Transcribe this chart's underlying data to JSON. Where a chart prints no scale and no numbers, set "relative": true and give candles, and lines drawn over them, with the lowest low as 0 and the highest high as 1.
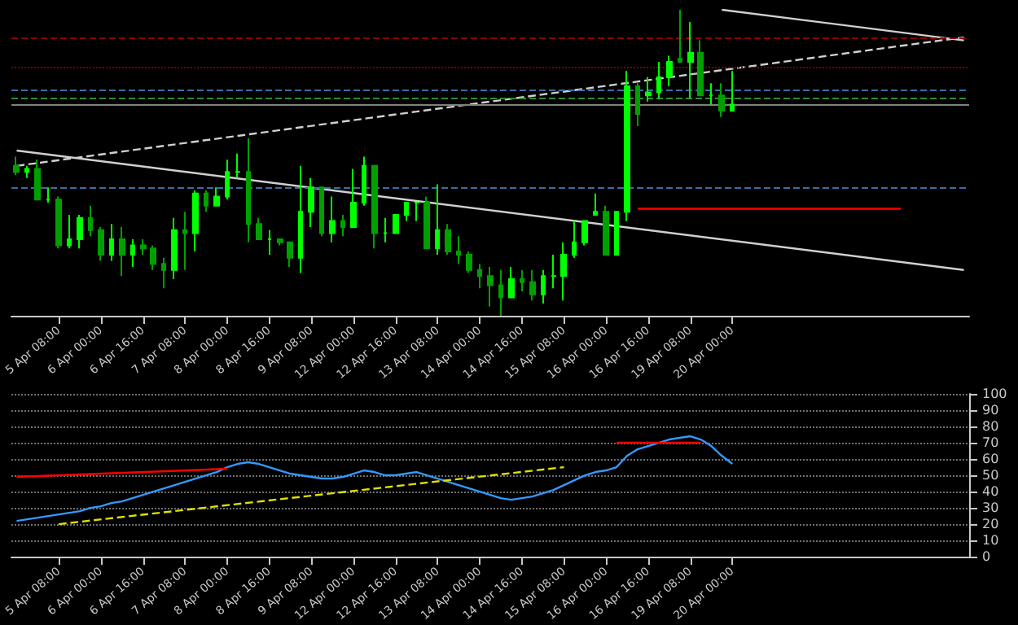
{
  "chart_data": [
    {
      "type": "candlestick",
      "relative": true,
      "categories": [
        null,
        null,
        null,
        null,
        "5 Apr 08:00",
        null,
        null,
        null,
        "6 Apr 00:00",
        null,
        null,
        null,
        "6 Apr 16:00",
        null,
        null,
        null,
        "7 Apr 08:00",
        null,
        null,
        null,
        "8 Apr 00:00",
        null,
        null,
        null,
        "8 Apr 16:00",
        null,
        null,
        null,
        "9 Apr 08:00",
        null,
        null,
        null,
        "12 Apr 00:00",
        null,
        null,
        null,
        "12 Apr 16:00",
        null,
        null,
        null,
        "13 Apr 08:00",
        null,
        null,
        null,
        "14 Apr 00:00",
        null,
        null,
        null,
        "14 Apr 16:00",
        null,
        null,
        null,
        "15 Apr 08:00",
        null,
        null,
        null,
        "16 Apr 00:00",
        null,
        null,
        null,
        "16 Apr 16:00",
        null,
        null,
        null,
        "19 Apr 08:00",
        null,
        null,
        null,
        "20 Apr 00:00",
        null,
        null,
        null,
        null,
        null,
        null,
        null,
        null,
        null,
        null,
        null,
        null,
        null,
        null,
        null,
        null,
        null,
        null,
        null,
        null,
        null,
        null
      ],
      "series": [
        {
          "colors": [
            "#00a000",
            "#00ff00",
            "#00a000",
            "#00ff00",
            "#00a000",
            "#00ff00",
            "#00ff00",
            "#00a000",
            "#00a000",
            "#00ff00",
            "#00a000",
            "#00ff00",
            "#00a000",
            "#00a000",
            "#00a000",
            "#00ff00",
            "#00a000",
            "#00ff00",
            "#00a000",
            "#00ff00",
            "#00ff00",
            "#00ff00",
            "#00a000",
            "#00a000",
            "#00ff00",
            "#00a000",
            "#00a000",
            "#00ff00",
            "#00ff00",
            "#00a000",
            "#00ff00",
            "#00a000",
            "#00ff00",
            "#00ff00",
            "#00a000",
            "#00ff00",
            "#00ff00",
            "#00ff00",
            "#00ff00",
            "#00a000",
            "#00ff00",
            "#00a000",
            "#00a000",
            "#00a000",
            "#00a000",
            "#00a000",
            "#00a000",
            "#00ff00",
            "#00a000",
            "#00a000",
            "#00ff00",
            "#00ff00",
            "#00ff00",
            "#00ff00",
            "#00ff00",
            "#00ff00",
            "#00a000",
            "#00ff00",
            "#00ff00",
            "#00a000",
            "#00ff00",
            "#00ff00",
            "#00ff00",
            "#00a000",
            "#00ff00",
            "#00a000",
            "#00ff00",
            "#00a000",
            "#00ff00",
            null,
            null,
            null,
            null,
            null,
            null,
            null,
            null,
            null,
            null,
            null,
            null,
            null,
            null,
            null,
            null,
            null,
            null,
            null,
            null,
            null,
            null
          ],
          "ohlc": [
            [
              0.49,
              0.52,
              0.46,
              0.47
            ],
            [
              0.47,
              0.49,
              0.45,
              0.48
            ],
            [
              0.48,
              0.51,
              0.38,
              0.38
            ],
            [
              0.38,
              0.42,
              0.37,
              0.38
            ],
            [
              0.38,
              0.39,
              0.22,
              0.23
            ],
            [
              0.23,
              0.33,
              0.22,
              0.25
            ],
            [
              0.25,
              0.33,
              0.22,
              0.32
            ],
            [
              0.32,
              0.36,
              0.26,
              0.28
            ],
            [
              0.28,
              0.29,
              0.18,
              0.2
            ],
            [
              0.2,
              0.3,
              0.18,
              0.25
            ],
            [
              0.25,
              0.29,
              0.13,
              0.2
            ],
            [
              0.2,
              0.25,
              0.16,
              0.23
            ],
            [
              0.23,
              0.25,
              0.2,
              0.22
            ],
            [
              0.22,
              0.23,
              0.15,
              0.17
            ],
            [
              0.17,
              0.19,
              0.09,
              0.15
            ],
            [
              0.15,
              0.32,
              0.12,
              0.28
            ],
            [
              0.28,
              0.34,
              0.15,
              0.27
            ],
            [
              0.27,
              0.41,
              0.21,
              0.4
            ],
            [
              0.4,
              0.41,
              0.34,
              0.36
            ],
            [
              0.36,
              0.42,
              0.36,
              0.39
            ],
            [
              0.39,
              0.51,
              0.38,
              0.47
            ],
            [
              0.47,
              0.53,
              0.45,
              0.47
            ],
            [
              0.47,
              0.58,
              0.24,
              0.3
            ],
            [
              0.3,
              0.32,
              0.25,
              0.25
            ],
            [
              0.25,
              0.28,
              0.2,
              0.25
            ],
            [
              0.25,
              0.25,
              0.23,
              0.24
            ],
            [
              0.24,
              0.24,
              0.16,
              0.19
            ],
            [
              0.19,
              0.49,
              0.14,
              0.34
            ],
            [
              0.34,
              0.45,
              0.29,
              0.42
            ],
            [
              0.42,
              0.42,
              0.26,
              0.27
            ],
            [
              0.27,
              0.39,
              0.24,
              0.31
            ],
            [
              0.31,
              0.33,
              0.26,
              0.29
            ],
            [
              0.29,
              0.48,
              0.29,
              0.37
            ],
            [
              0.37,
              0.52,
              0.36,
              0.49
            ],
            [
              0.49,
              0.49,
              0.22,
              0.27
            ],
            [
              0.27,
              0.32,
              0.24,
              0.27
            ],
            [
              0.27,
              0.33,
              0.27,
              0.33
            ],
            [
              0.33,
              0.37,
              0.31,
              0.37
            ],
            [
              0.37,
              0.37,
              0.31,
              0.37
            ],
            [
              0.37,
              0.39,
              0.22,
              0.22
            ],
            [
              0.22,
              0.43,
              0.2,
              0.28
            ],
            [
              0.28,
              0.3,
              0.2,
              0.21
            ],
            [
              0.21,
              0.26,
              0.17,
              0.2
            ],
            [
              0.2,
              0.21,
              0.14,
              0.15
            ],
            [
              0.15,
              0.17,
              0.09,
              0.13
            ],
            [
              0.13,
              0.16,
              0.03,
              0.1
            ],
            [
              0.1,
              0.15,
              0,
              0.06
            ],
            [
              0.06,
              0.16,
              0.06,
              0.12
            ],
            [
              0.12,
              0.15,
              0.08,
              0.11
            ],
            [
              0.11,
              0.15,
              0.05,
              0.07
            ],
            [
              0.07,
              0.15,
              0.04,
              0.13
            ],
            [
              0.13,
              0.2,
              0.09,
              0.13
            ],
            [
              0.13,
              0.24,
              0.05,
              0.2
            ],
            [
              0.2,
              0.31,
              0.19,
              0.24
            ],
            [
              0.24,
              0.31,
              0.23,
              0.31
            ],
            [
              0.33,
              0.4,
              0.33,
              0.34
            ],
            [
              0.34,
              0.36,
              0.2,
              0.2
            ],
            [
              0.2,
              0.34,
              0.2,
              0.34
            ],
            [
              0.34,
              0.8,
              0.31,
              0.75
            ],
            [
              0.75,
              0.76,
              0.62,
              0.66
            ],
            [
              0.72,
              0.78,
              0.7,
              0.73
            ],
            [
              0.73,
              0.83,
              0.71,
              0.78
            ],
            [
              0.78,
              0.85,
              0.75,
              0.83
            ],
            [
              0.84,
              1,
              0.83,
              0.83
            ],
            [
              0.83,
              0.96,
              0.71,
              0.86
            ],
            [
              0.86,
              0.9,
              0.72,
              0.72
            ],
            [
              0.72,
              0.76,
              0.69,
              0.72
            ],
            [
              0.72,
              0.76,
              0.65,
              0.67
            ],
            [
              0.67,
              0.8,
              0.67,
              0.69
            ],
            null,
            null,
            null,
            null,
            null,
            null,
            null,
            null,
            null,
            null,
            null,
            null,
            null,
            null,
            null,
            null,
            null,
            null,
            null,
            null,
            null,
            null
          ]
        },
        {
          "type": "line",
          "color": "#d0d0d0",
          "values": [
            null,
            null,
            null,
            null,
            null,
            null,
            null,
            null,
            null,
            null,
            null,
            null,
            null,
            null,
            null,
            null,
            null,
            null,
            null,
            null,
            null,
            null,
            null,
            null,
            null,
            null,
            null,
            null,
            null,
            null,
            null,
            null,
            null,
            null,
            null,
            null,
            null,
            null,
            null,
            null,
            null,
            null,
            null,
            null,
            null,
            null,
            null,
            null,
            null,
            null,
            null,
            null,
            null,
            null,
            null,
            null,
            null,
            null,
            null,
            null,
            null,
            null,
            null,
            null,
            null,
            null,
            null,
            1,
            null,
            null,
            null,
            null,
            null,
            null,
            null,
            null,
            null,
            null,
            null,
            null,
            null,
            null,
            null,
            null,
            null,
            null,
            null,
            null,
            null,
            null,
            0.9
          ]
        },
        {
          "type": "line",
          "color": "#d0d0d0",
          "line_style": "dashed",
          "values": [
            0.49,
            null,
            null,
            null,
            null,
            null,
            null,
            null,
            null,
            null,
            null,
            null,
            null,
            null,
            null,
            null,
            null,
            null,
            null,
            null,
            null,
            null,
            null,
            null,
            null,
            null,
            null,
            null,
            null,
            null,
            null,
            null,
            null,
            null,
            null,
            null,
            null,
            null,
            null,
            null,
            null,
            null,
            null,
            null,
            null,
            null,
            null,
            null,
            null,
            null,
            null,
            null,
            null,
            null,
            null,
            null,
            null,
            null,
            null,
            null,
            null,
            null,
            null,
            null,
            null,
            null,
            null,
            null,
            null,
            null,
            null,
            null,
            null,
            null,
            null,
            null,
            null,
            null,
            null,
            null,
            null,
            null,
            null,
            null,
            null,
            null,
            null,
            null,
            null,
            null,
            0.91
          ]
        },
        {
          "type": "line",
          "color": "#d0d0d0",
          "values": [
            0.54,
            null,
            null,
            null,
            null,
            null,
            null,
            null,
            null,
            null,
            null,
            null,
            null,
            null,
            null,
            null,
            null,
            null,
            null,
            null,
            null,
            null,
            null,
            null,
            null,
            null,
            null,
            null,
            null,
            null,
            null,
            null,
            null,
            null,
            null,
            null,
            null,
            null,
            null,
            null,
            null,
            null,
            null,
            null,
            null,
            null,
            null,
            null,
            null,
            null,
            null,
            null,
            null,
            null,
            null,
            null,
            null,
            null,
            null,
            null,
            null,
            null,
            null,
            null,
            null,
            null,
            null,
            null,
            null,
            null,
            null,
            null,
            null,
            null,
            null,
            null,
            null,
            null,
            null,
            null,
            null,
            null,
            null,
            null,
            null,
            null,
            null,
            null,
            null,
            null,
            0.15
          ]
        },
        {
          "type": "line",
          "color": "#ff0000",
          "values": [
            null,
            null,
            null,
            null,
            null,
            null,
            null,
            null,
            null,
            null,
            null,
            null,
            null,
            null,
            null,
            null,
            null,
            null,
            null,
            null,
            null,
            null,
            null,
            null,
            null,
            null,
            null,
            null,
            null,
            null,
            null,
            null,
            null,
            null,
            null,
            null,
            null,
            null,
            null,
            null,
            null,
            null,
            null,
            null,
            null,
            null,
            null,
            null,
            null,
            null,
            null,
            null,
            null,
            null,
            null,
            null,
            null,
            null,
            null,
            0.35,
            null,
            null,
            null,
            null,
            null,
            null,
            null,
            null,
            null,
            null,
            null,
            null,
            null,
            null,
            null,
            null,
            null,
            null,
            null,
            null,
            null,
            null,
            null,
            null,
            0.35,
            null,
            null,
            null,
            null,
            null,
            null
          ]
        }
      ],
      "ref_lines": [
        {
          "axis": "y",
          "value": 0.91,
          "color": "#8b0000",
          "line_style": "dashed"
        },
        {
          "axis": "y",
          "value": 0.81,
          "color": "#800000",
          "line_style": "dotted"
        },
        {
          "axis": "y",
          "value": 0.74,
          "color": "#3a6ea5",
          "line_style": "dashed"
        },
        {
          "axis": "y",
          "value": 0.71,
          "color": "#2e8b2e",
          "line_style": "dashed"
        },
        {
          "axis": "y",
          "value": 0.69,
          "color": "#808080",
          "line_style": "solid"
        },
        {
          "axis": "y",
          "value": 0.42,
          "color": "#3a6ea5",
          "line_style": "dashed"
        }
      ]
    },
    {
      "type": "line",
      "ylim": [
        0,
        100
      ],
      "yticks": [
        0,
        10,
        20,
        30,
        40,
        50,
        60,
        70,
        80,
        90,
        100
      ],
      "grid": "y",
      "categories": [
        null,
        null,
        null,
        null,
        "5 Apr 08:00",
        null,
        null,
        null,
        "6 Apr 00:00",
        null,
        null,
        null,
        "6 Apr 16:00",
        null,
        null,
        null,
        "7 Apr 08:00",
        null,
        null,
        null,
        "8 Apr 00:00",
        null,
        null,
        null,
        "8 Apr 16:00",
        null,
        null,
        null,
        "9 Apr 08:00",
        null,
        null,
        null,
        "12 Apr 00:00",
        null,
        null,
        null,
        "12 Apr 16:00",
        null,
        null,
        null,
        "13 Apr 08:00",
        null,
        null,
        null,
        "14 Apr 00:00",
        null,
        null,
        null,
        "14 Apr 16:00",
        null,
        null,
        null,
        "15 Apr 08:00",
        null,
        null,
        null,
        "16 Apr 00:00",
        null,
        null,
        null,
        "16 Apr 16:00",
        null,
        null,
        null,
        "19 Apr 08:00",
        null,
        null,
        null,
        "20 Apr 00:00",
        null,
        null,
        null,
        null,
        null,
        null,
        null,
        null,
        null,
        null,
        null,
        null,
        null,
        null,
        null,
        null,
        null,
        null,
        null,
        null,
        null,
        null
      ],
      "series": [
        {
          "color": "#3399ff",
          "values": [
            22,
            23,
            24,
            25,
            26,
            27,
            28,
            30,
            31,
            33,
            34,
            36,
            38,
            40,
            42,
            44,
            46,
            48,
            50,
            52,
            55,
            57,
            58,
            57,
            55,
            53,
            51,
            50,
            49,
            48,
            48,
            49,
            51,
            53,
            52,
            50,
            50,
            51,
            52,
            50,
            48,
            46,
            44,
            42,
            40,
            38,
            36,
            35,
            36,
            37,
            39,
            41,
            44,
            47,
            50,
            52,
            53,
            55,
            62,
            66,
            68,
            70,
            72,
            73,
            74,
            72,
            68,
            62,
            57,
            null,
            null,
            null,
            null,
            null,
            null,
            null,
            null,
            null,
            null,
            null,
            null,
            null,
            null,
            null,
            null,
            null,
            null,
            null,
            null,
            null,
            null
          ]
        },
        {
          "color": "#ff0000",
          "values": [
            49,
            null,
            null,
            null,
            null,
            null,
            null,
            null,
            null,
            null,
            null,
            null,
            null,
            null,
            null,
            null,
            null,
            null,
            null,
            null,
            54,
            null,
            null,
            null,
            null,
            null,
            null,
            null,
            null,
            null,
            null,
            null,
            null,
            null,
            null,
            null,
            null,
            null,
            null,
            null,
            null,
            null,
            null,
            null,
            null,
            null,
            null,
            null,
            null,
            null,
            null,
            null,
            null,
            null,
            null,
            null,
            null,
            null,
            null,
            null,
            null,
            null,
            null,
            null,
            null,
            null,
            null,
            null,
            null,
            null,
            null,
            null,
            null,
            null,
            null,
            null,
            null,
            null,
            null,
            null,
            null,
            null,
            null,
            null,
            null,
            null,
            null,
            null,
            null,
            null,
            null
          ]
        },
        {
          "color": "#ff0000",
          "values": [
            null,
            null,
            null,
            null,
            null,
            null,
            null,
            null,
            null,
            null,
            null,
            null,
            null,
            null,
            null,
            null,
            null,
            null,
            null,
            null,
            null,
            null,
            null,
            null,
            null,
            null,
            null,
            null,
            null,
            null,
            null,
            null,
            null,
            null,
            null,
            null,
            null,
            null,
            null,
            null,
            null,
            null,
            null,
            null,
            null,
            null,
            null,
            null,
            null,
            null,
            null,
            null,
            null,
            null,
            null,
            null,
            null,
            70,
            null,
            null,
            null,
            null,
            null,
            null,
            null,
            70,
            null,
            null,
            null,
            null,
            null,
            null,
            null,
            null,
            null,
            null,
            null,
            null,
            null,
            null,
            null,
            null,
            null,
            null,
            null,
            null,
            null,
            null,
            null,
            null,
            null
          ]
        },
        {
          "color": "#e0e000",
          "line_style": "dashed",
          "values": [
            null,
            null,
            null,
            null,
            20,
            null,
            null,
            null,
            null,
            null,
            null,
            null,
            null,
            null,
            null,
            null,
            null,
            null,
            null,
            null,
            null,
            null,
            null,
            null,
            null,
            null,
            null,
            null,
            null,
            null,
            null,
            null,
            null,
            null,
            null,
            null,
            null,
            null,
            null,
            null,
            null,
            null,
            null,
            null,
            null,
            null,
            null,
            null,
            null,
            null,
            null,
            null,
            55,
            null,
            null,
            null,
            null,
            null,
            null,
            null,
            null,
            null,
            null,
            null,
            null,
            null,
            null,
            null,
            null,
            null,
            null,
            null,
            null,
            null,
            null,
            null,
            null,
            null,
            null,
            null,
            null,
            null,
            null,
            null,
            null,
            null,
            null,
            null,
            null,
            null,
            null
          ]
        }
      ]
    }
  ]
}
